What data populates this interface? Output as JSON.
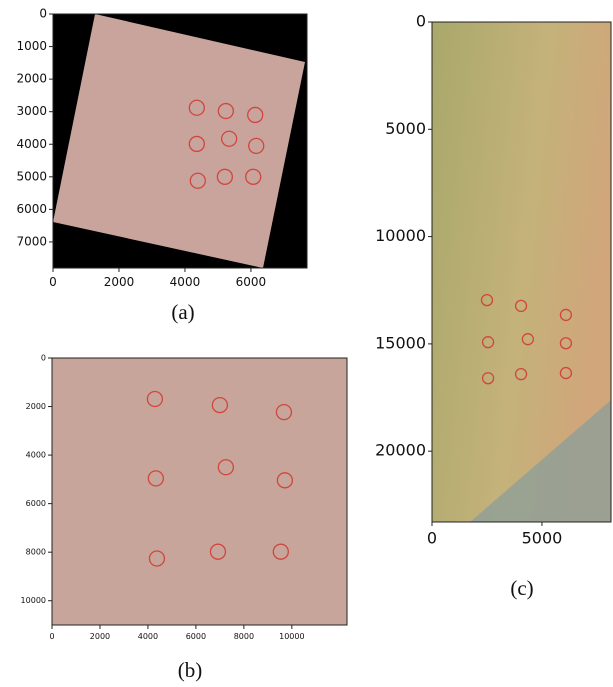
{
  "chart_data": [
    {
      "type": "scatter",
      "caption": "(a)",
      "color": "#d0463f",
      "x": [
        4360,
        5240,
        6130,
        4360,
        5340,
        6160,
        4390,
        5210,
        6070
      ],
      "values": [
        2880,
        2980,
        3100,
        3990,
        3830,
        4050,
        5120,
        5000,
        5000
      ],
      "xlim": [
        0,
        7700
      ],
      "ylim": [
        7800,
        0
      ],
      "xticks": [
        0,
        2000,
        4000,
        6000
      ],
      "yticks": [
        0,
        1000,
        2000,
        3000,
        4000,
        5000,
        6000,
        7000
      ]
    },
    {
      "type": "scatter",
      "caption": "(b)",
      "color": "#d0463f",
      "x": [
        4290,
        7000,
        9670,
        4330,
        7250,
        9710,
        4375,
        6920,
        9540
      ],
      "values": [
        1690,
        1940,
        2230,
        4960,
        4500,
        5040,
        8260,
        7980,
        7980
      ],
      "xlim": [
        0,
        12300
      ],
      "ylim": [
        11000,
        0
      ],
      "xticks": [
        0,
        2000,
        4000,
        6000,
        8000,
        10000
      ],
      "yticks": [
        0,
        2000,
        4000,
        6000,
        8000,
        10000
      ]
    },
    {
      "type": "scatter",
      "caption": "(c)",
      "color": "#d0463f",
      "x": [
        2500,
        4050,
        6090,
        2550,
        4360,
        6090,
        2550,
        4050,
        6090
      ],
      "values": [
        12960,
        13230,
        13650,
        14920,
        14780,
        14970,
        16600,
        16410,
        16360
      ],
      "xlim": [
        0,
        8140
      ],
      "ylim": [
        23300,
        0
      ],
      "xticks": [
        0,
        5000
      ],
      "yticks": [
        0,
        5000,
        10000,
        15000,
        20000
      ]
    }
  ]
}
